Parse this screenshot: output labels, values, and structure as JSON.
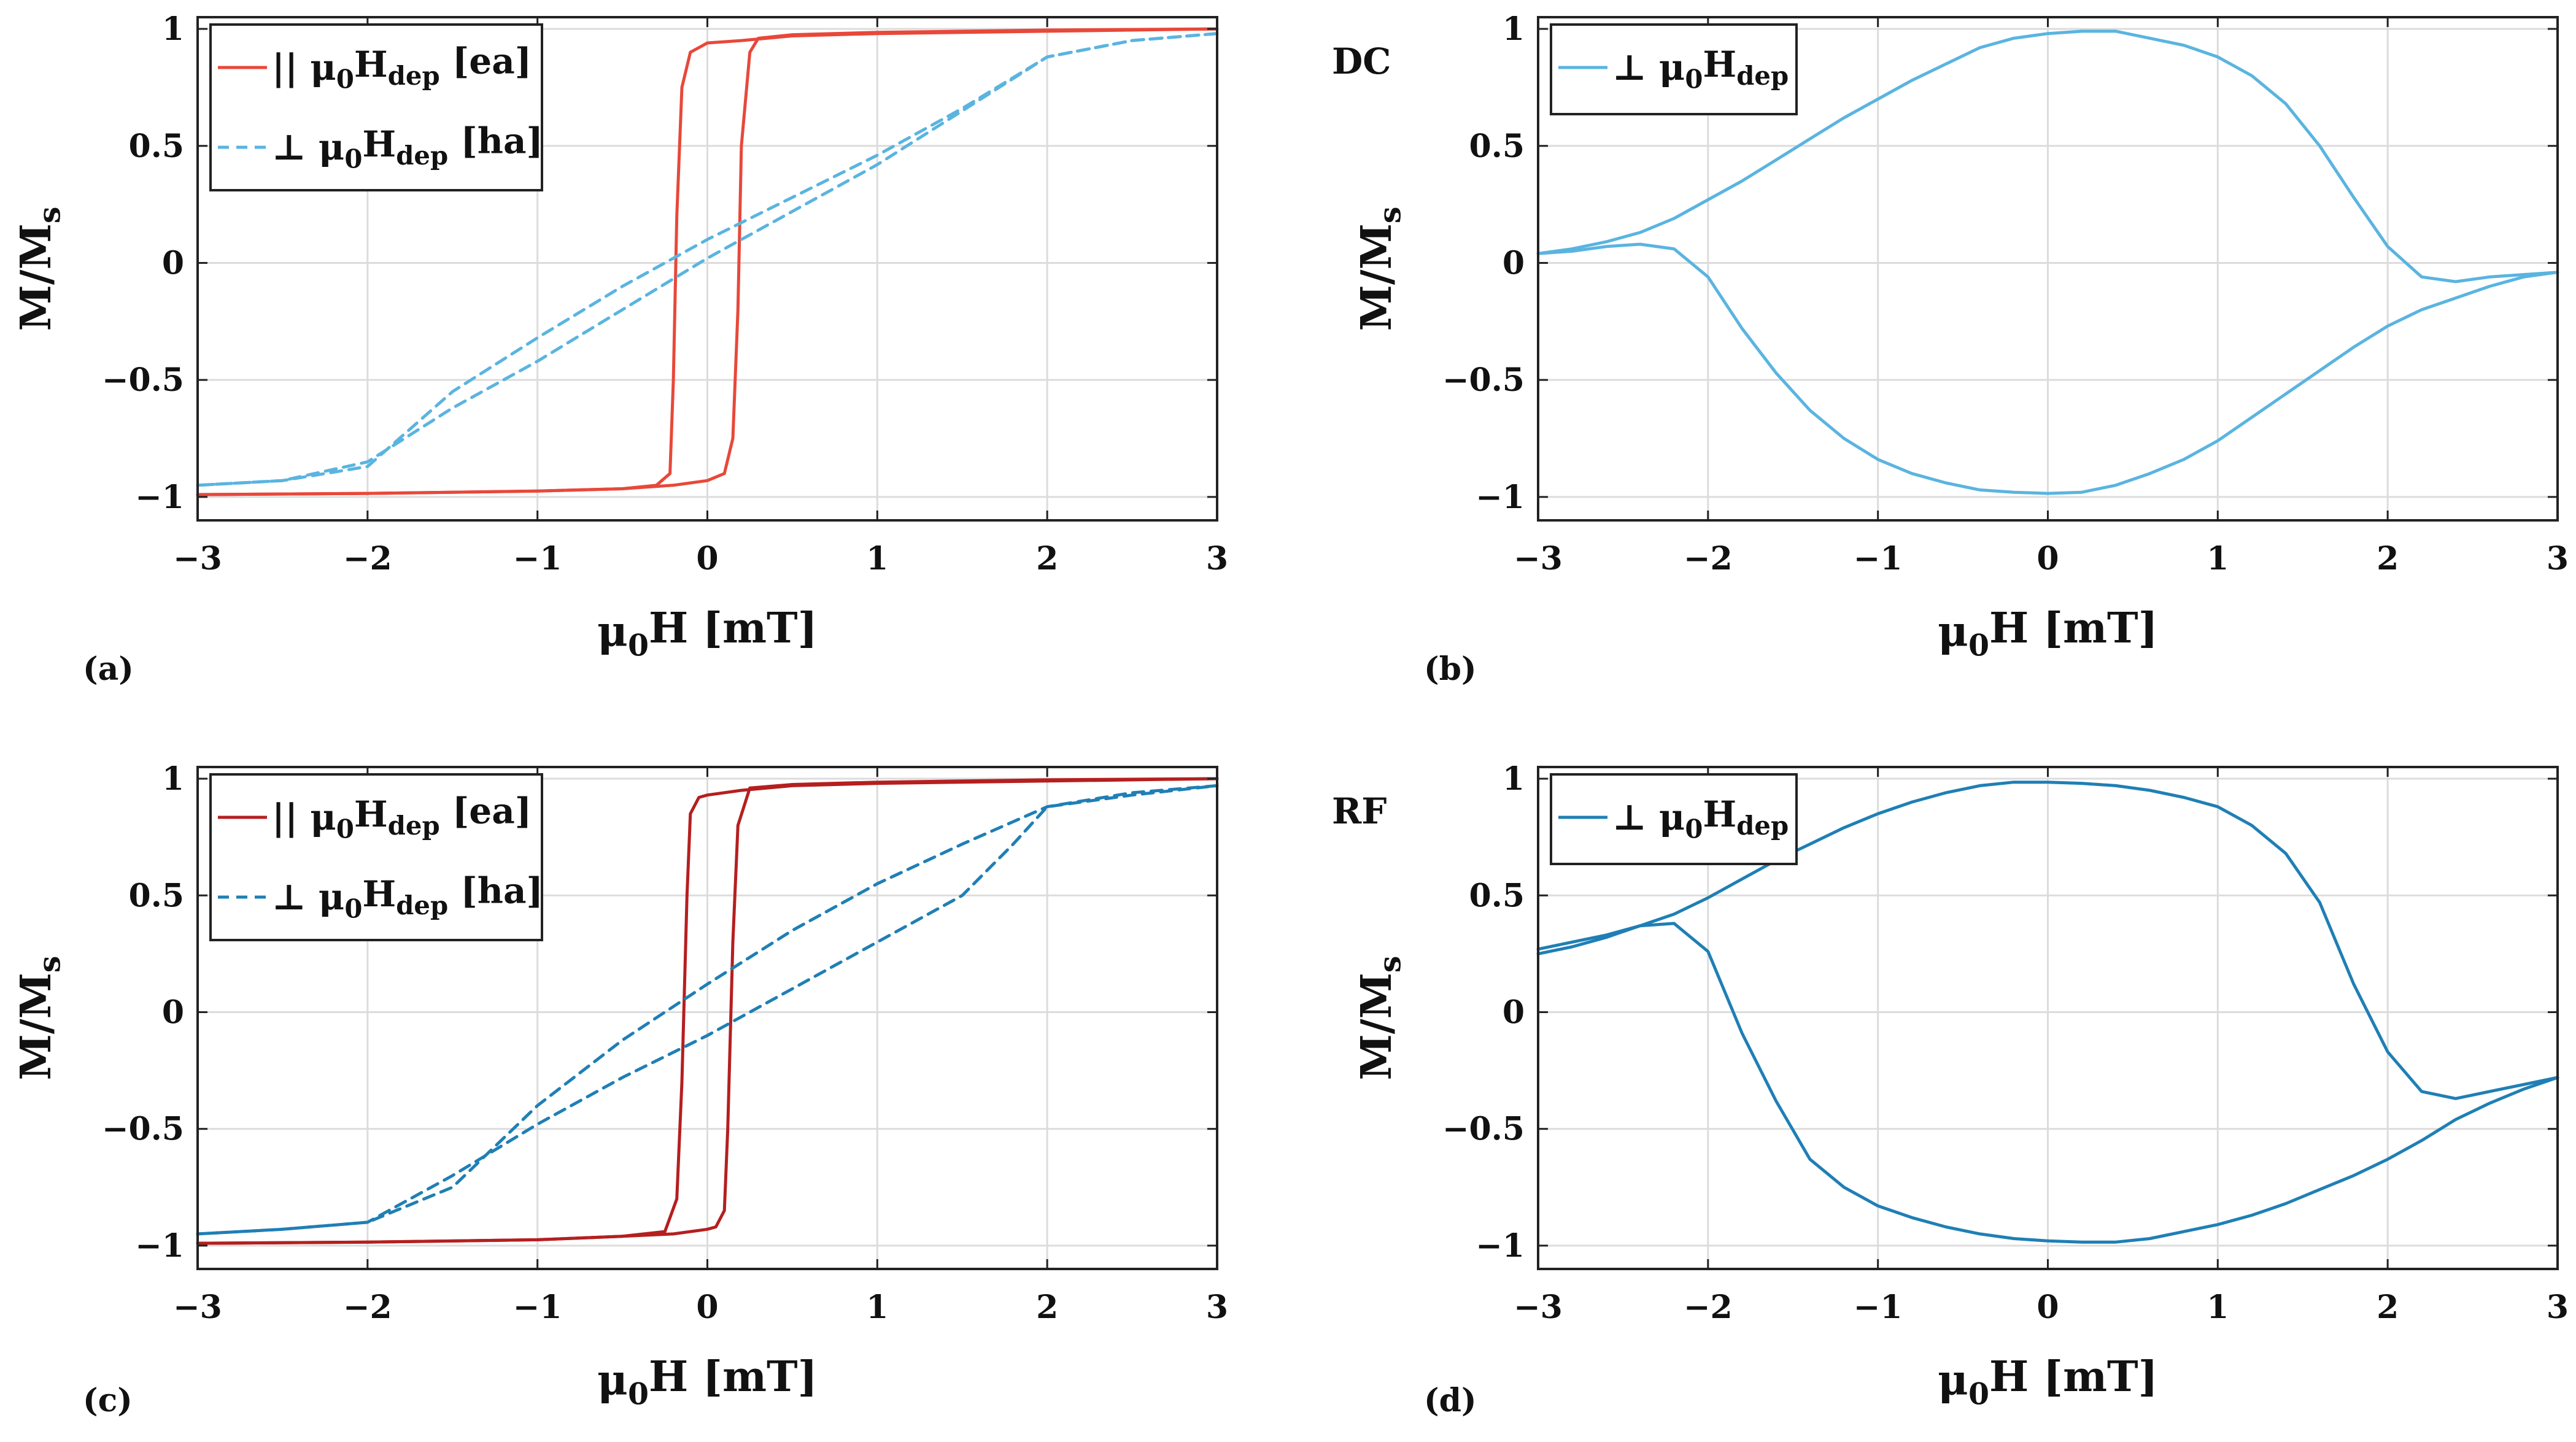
{
  "chart_data": [
    {
      "type": "line",
      "panel_label": "(a)",
      "side_tag": "",
      "xlabel": "μ0H [mT]",
      "ylabel": "M/Ms",
      "xlim": [
        -3,
        3
      ],
      "ylim": [
        -1.1,
        1.05
      ],
      "xticks": [
        -3,
        -2,
        -1,
        0,
        1,
        2,
        3
      ],
      "yticks": [
        -1,
        -0.5,
        0,
        0.5,
        1
      ],
      "xtick_labels": [
        "−3",
        "−2",
        "−1",
        "0",
        "1",
        "2",
        "3"
      ],
      "ytick_labels": [
        "−1",
        "−0.5",
        "0",
        "0.5",
        "1"
      ],
      "grid": true,
      "legend_position": "top-left",
      "series": [
        {
          "name": "|| μ0Hdep [ea]",
          "legend": {
            "symbol": "||",
            "base": "μ",
            "base_sub": "0",
            "main": "H",
            "main_sub": "dep",
            "suffix": "[ea]"
          },
          "color": "#e8483a",
          "dash": "solid",
          "branches": [
            {
              "x": [
                -3,
                -2,
                -1,
                -0.5,
                -0.3,
                -0.22,
                -0.2,
                -0.18,
                -0.15,
                -0.1,
                0,
                0.2,
                0.5,
                1,
                2,
                3
              ],
              "y": [
                -0.99,
                -0.985,
                -0.975,
                -0.965,
                -0.95,
                -0.9,
                -0.5,
                0.2,
                0.75,
                0.9,
                0.94,
                0.95,
                0.97,
                0.98,
                0.99,
                1.0
              ]
            },
            {
              "x": [
                3,
                2,
                1,
                0.5,
                0.3,
                0.25,
                0.2,
                0.18,
                0.15,
                0.1,
                0,
                -0.2,
                -0.5,
                -1,
                -2,
                -3
              ],
              "y": [
                1.0,
                0.995,
                0.985,
                0.975,
                0.96,
                0.9,
                0.5,
                -0.2,
                -0.75,
                -0.9,
                -0.93,
                -0.95,
                -0.965,
                -0.975,
                -0.985,
                -0.99
              ]
            }
          ]
        },
        {
          "name": "⊥ μ0Hdep [ha]",
          "legend": {
            "symbol": "⊥",
            "base": "μ",
            "base_sub": "0",
            "main": "H",
            "main_sub": "dep",
            "suffix": "[ha]"
          },
          "color": "#5ab4e0",
          "dash": "dashed",
          "branches": [
            {
              "x": [
                -3,
                -2.5,
                -2,
                -1.5,
                -1,
                -0.5,
                0,
                0.5,
                1,
                1.5,
                2,
                2.5,
                3
              ],
              "y": [
                -0.95,
                -0.93,
                -0.85,
                -0.62,
                -0.42,
                -0.2,
                0.02,
                0.22,
                0.42,
                0.65,
                0.88,
                0.95,
                0.98
              ]
            },
            {
              "x": [
                3,
                2.5,
                2,
                1.5,
                1,
                0.5,
                0,
                -0.5,
                -1,
                -1.5,
                -2,
                -2.5,
                -3
              ],
              "y": [
                0.98,
                0.95,
                0.88,
                0.66,
                0.46,
                0.28,
                0.1,
                -0.1,
                -0.32,
                -0.55,
                -0.87,
                -0.93,
                -0.95
              ]
            }
          ]
        }
      ]
    },
    {
      "type": "line",
      "panel_label": "(b)",
      "side_tag": "DC",
      "xlabel": "μ0H [mT]",
      "ylabel": "M/Ms",
      "xlim": [
        -3,
        3
      ],
      "ylim": [
        -1.1,
        1.05
      ],
      "xticks": [
        -3,
        -2,
        -1,
        0,
        1,
        2,
        3
      ],
      "yticks": [
        -1,
        -0.5,
        0,
        0.5,
        1
      ],
      "xtick_labels": [
        "−3",
        "−2",
        "−1",
        "0",
        "1",
        "2",
        "3"
      ],
      "ytick_labels": [
        "−1",
        "−0.5",
        "0",
        "0.5",
        "1"
      ],
      "grid": true,
      "legend_position": "top-left",
      "series": [
        {
          "name": "⊥ μ0Hdep",
          "legend": {
            "symbol": "⊥",
            "base": "μ",
            "base_sub": "0",
            "main": "H",
            "main_sub": "dep",
            "suffix": ""
          },
          "color": "#5ab4e0",
          "dash": "solid",
          "branches": [
            {
              "x": [
                -3,
                -2.8,
                -2.6,
                -2.4,
                -2.2,
                -2.0,
                -1.8,
                -1.6,
                -1.4,
                -1.2,
                -1.0,
                -0.8,
                -0.6,
                -0.4,
                -0.2,
                0,
                0.2,
                0.4,
                0.6,
                0.8,
                1.0,
                1.2,
                1.4,
                1.6,
                1.8,
                2.0,
                2.2,
                2.4,
                2.6,
                2.8,
                3.0
              ],
              "y": [
                0.04,
                0.06,
                0.09,
                0.13,
                0.19,
                0.27,
                0.35,
                0.44,
                0.53,
                0.62,
                0.7,
                0.78,
                0.85,
                0.92,
                0.96,
                0.98,
                0.99,
                0.99,
                0.96,
                0.93,
                0.88,
                0.8,
                0.68,
                0.5,
                0.28,
                0.07,
                -0.06,
                -0.08,
                -0.06,
                -0.05,
                -0.04
              ]
            },
            {
              "x": [
                3.0,
                2.8,
                2.6,
                2.4,
                2.2,
                2.0,
                1.8,
                1.6,
                1.4,
                1.2,
                1.0,
                0.8,
                0.6,
                0.4,
                0.2,
                0,
                -0.2,
                -0.4,
                -0.6,
                -0.8,
                -1.0,
                -1.2,
                -1.4,
                -1.6,
                -1.8,
                -2.0,
                -2.2,
                -2.4,
                -2.6,
                -2.8,
                -3.0
              ],
              "y": [
                -0.04,
                -0.06,
                -0.1,
                -0.15,
                -0.2,
                -0.27,
                -0.36,
                -0.46,
                -0.56,
                -0.66,
                -0.76,
                -0.84,
                -0.9,
                -0.95,
                -0.98,
                -0.985,
                -0.98,
                -0.97,
                -0.94,
                -0.9,
                -0.84,
                -0.75,
                -0.63,
                -0.47,
                -0.28,
                -0.06,
                0.06,
                0.08,
                0.07,
                0.05,
                0.04
              ]
            }
          ]
        }
      ]
    },
    {
      "type": "line",
      "panel_label": "(c)",
      "side_tag": "",
      "xlabel": "μ0H [mT]",
      "ylabel": "M/Ms",
      "xlim": [
        -3,
        3
      ],
      "ylim": [
        -1.1,
        1.05
      ],
      "xticks": [
        -3,
        -2,
        -1,
        0,
        1,
        2,
        3
      ],
      "yticks": [
        -1,
        -0.5,
        0,
        0.5,
        1
      ],
      "xtick_labels": [
        "−3",
        "−2",
        "−1",
        "0",
        "1",
        "2",
        "3"
      ],
      "ytick_labels": [
        "−1",
        "−0.5",
        "0",
        "0.5",
        "1"
      ],
      "grid": true,
      "legend_position": "top-left",
      "series": [
        {
          "name": "|| μ0Hdep [ea]",
          "legend": {
            "symbol": "||",
            "base": "μ",
            "base_sub": "0",
            "main": "H",
            "main_sub": "dep",
            "suffix": "[ea]"
          },
          "color": "#b51f1f",
          "dash": "solid",
          "branches": [
            {
              "x": [
                -3,
                -2,
                -1,
                -0.5,
                -0.25,
                -0.18,
                -0.15,
                -0.12,
                -0.1,
                -0.05,
                0,
                0.2,
                0.5,
                1,
                2,
                3
              ],
              "y": [
                -0.99,
                -0.985,
                -0.975,
                -0.96,
                -0.94,
                -0.8,
                -0.3,
                0.5,
                0.85,
                0.92,
                0.93,
                0.95,
                0.97,
                0.98,
                0.99,
                1.0
              ]
            },
            {
              "x": [
                3,
                2,
                1,
                0.5,
                0.25,
                0.18,
                0.15,
                0.12,
                0.1,
                0.05,
                0,
                -0.2,
                -0.5,
                -1,
                -2,
                -3
              ],
              "y": [
                1.0,
                0.995,
                0.985,
                0.975,
                0.96,
                0.8,
                0.3,
                -0.5,
                -0.85,
                -0.92,
                -0.93,
                -0.95,
                -0.96,
                -0.975,
                -0.985,
                -0.99
              ]
            }
          ]
        },
        {
          "name": "⊥ μ0Hdep [ha]",
          "legend": {
            "symbol": "⊥",
            "base": "μ",
            "base_sub": "0",
            "main": "H",
            "main_sub": "dep",
            "suffix": "[ha]"
          },
          "color": "#1f7fb5",
          "dash": "dashed",
          "branches": [
            {
              "x": [
                -3,
                -2.5,
                -2,
                -1.5,
                -1,
                -0.5,
                0,
                0.5,
                1,
                1.5,
                1.8,
                2,
                2.5,
                3
              ],
              "y": [
                -0.95,
                -0.93,
                -0.9,
                -0.7,
                -0.48,
                -0.28,
                -0.1,
                0.1,
                0.3,
                0.5,
                0.72,
                0.88,
                0.93,
                0.97
              ]
            },
            {
              "x": [
                3,
                2.5,
                2,
                1.5,
                1,
                0.5,
                0,
                -0.5,
                -1,
                -1.5,
                -2,
                -2.5,
                -3
              ],
              "y": [
                0.97,
                0.94,
                0.88,
                0.72,
                0.55,
                0.35,
                0.12,
                -0.12,
                -0.4,
                -0.75,
                -0.9,
                -0.93,
                -0.95
              ]
            }
          ]
        }
      ]
    },
    {
      "type": "line",
      "panel_label": "(d)",
      "side_tag": "RF",
      "xlabel": "μ0H [mT]",
      "ylabel": "M/Ms",
      "xlim": [
        -3,
        3
      ],
      "ylim": [
        -1.1,
        1.05
      ],
      "xticks": [
        -3,
        -2,
        -1,
        0,
        1,
        2,
        3
      ],
      "yticks": [
        -1,
        -0.5,
        0,
        0.5,
        1
      ],
      "xtick_labels": [
        "−3",
        "−2",
        "−1",
        "0",
        "1",
        "2",
        "3"
      ],
      "ytick_labels": [
        "−1",
        "−0.5",
        "0",
        "0.5",
        "1"
      ],
      "grid": true,
      "legend_position": "top-left",
      "series": [
        {
          "name": "⊥ μ0Hdep",
          "legend": {
            "symbol": "⊥",
            "base": "μ",
            "base_sub": "0",
            "main": "H",
            "main_sub": "dep",
            "suffix": ""
          },
          "color": "#1f7fb5",
          "dash": "solid",
          "branches": [
            {
              "x": [
                -3,
                -2.8,
                -2.6,
                -2.4,
                -2.2,
                -2.0,
                -1.8,
                -1.6,
                -1.4,
                -1.2,
                -1.0,
                -0.8,
                -0.6,
                -0.4,
                -0.2,
                0,
                0.2,
                0.4,
                0.6,
                0.8,
                1.0,
                1.2,
                1.4,
                1.6,
                1.8,
                2.0,
                2.2,
                2.4,
                2.6,
                2.8,
                3.0
              ],
              "y": [
                0.27,
                0.3,
                0.33,
                0.37,
                0.42,
                0.49,
                0.57,
                0.65,
                0.72,
                0.79,
                0.85,
                0.9,
                0.94,
                0.97,
                0.985,
                0.985,
                0.98,
                0.97,
                0.95,
                0.92,
                0.88,
                0.8,
                0.68,
                0.47,
                0.12,
                -0.17,
                -0.34,
                -0.37,
                -0.34,
                -0.31,
                -0.28
              ]
            },
            {
              "x": [
                3.0,
                2.8,
                2.6,
                2.4,
                2.2,
                2.0,
                1.8,
                1.6,
                1.4,
                1.2,
                1.0,
                0.8,
                0.6,
                0.4,
                0.2,
                0,
                -0.2,
                -0.4,
                -0.6,
                -0.8,
                -1.0,
                -1.2,
                -1.4,
                -1.6,
                -1.8,
                -2.0,
                -2.2,
                -2.4,
                -2.6,
                -2.8,
                -3.0
              ],
              "y": [
                -0.28,
                -0.33,
                -0.39,
                -0.46,
                -0.55,
                -0.63,
                -0.7,
                -0.76,
                -0.82,
                -0.87,
                -0.91,
                -0.94,
                -0.97,
                -0.985,
                -0.985,
                -0.98,
                -0.97,
                -0.95,
                -0.92,
                -0.88,
                -0.83,
                -0.75,
                -0.63,
                -0.38,
                -0.09,
                0.26,
                0.38,
                0.37,
                0.32,
                0.28,
                0.25
              ]
            }
          ]
        }
      ]
    }
  ]
}
